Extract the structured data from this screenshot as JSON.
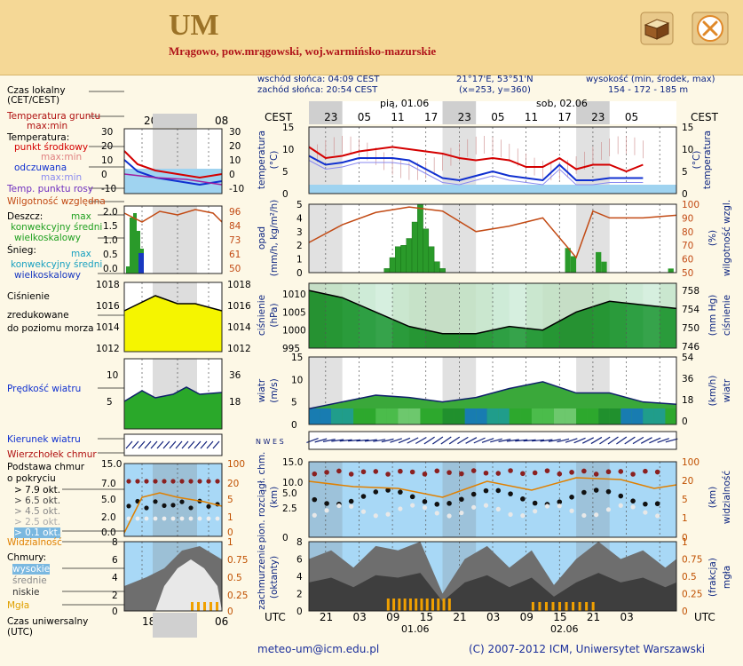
{
  "header": {
    "title": "UM",
    "subtitle": "Mrągowo, pow.mrągowski, woj.warmińsko-mazurskie",
    "colors": {
      "bar": "#f5d896",
      "title": "#9b7227",
      "subtitle": "#b0141a"
    }
  },
  "info": {
    "sunrise": "wschód słońca: 04:09 CEST",
    "sunset": "zachód słońca: 20:54 CEST",
    "coords": "21°17'E, 53°51'N",
    "grid": "(x=253, y=360)",
    "elevation_label": "wysokość (min, środek, max)",
    "elevation_value": "154 - 172 - 185 m"
  },
  "time": {
    "local_label": "CEST",
    "utc_label": "UTC",
    "days": [
      "pią, 01.06",
      "sob, 02.06"
    ],
    "local_ticks": [
      "23",
      "05",
      "11",
      "17",
      "23",
      "05",
      "11",
      "17",
      "23",
      "05"
    ],
    "utc_ticks": [
      "21",
      "03",
      "09",
      "15",
      "21",
      "03",
      "09",
      "15",
      "21",
      "03"
    ],
    "utc_dates": [
      "01.06",
      "02.06"
    ]
  },
  "legend": {
    "local_time": "Czas lokalny",
    "local_time_2": "(CET/CEST)",
    "soil_temp": "Temperatura gruntu",
    "soil_temp_2": "max:min",
    "temperature": "Temperatura:",
    "mid_point": "punkt środkowy",
    "max_min_1": "max:min",
    "feels_like": "odczuwana",
    "max_min_2": "max:min",
    "dew_point": "Temp. punktu rosy",
    "humidity": "Wilgotność względna",
    "rain": "Deszcz:",
    "rain_max": "max",
    "convective_avg": "konwekcyjny średni",
    "large_scale": "wielkoskalowy",
    "snow": "Śnieg:",
    "snow_max": "max",
    "snow_convective": "konwekcyjny średni",
    "snow_large": "wielkoskalowy",
    "pressure": "Ciśnienie",
    "pressure_2": "zredukowane",
    "pressure_3": "do poziomu morza",
    "wind_speed": "Prędkość wiatru",
    "wind_dir": "Kierunek wiatru",
    "cloud_top": "Wierzchołek chmur",
    "cloud_base": "Podstawa chmur",
    "cloud_base_2": "o pokryciu",
    "okt1": "> 7.9 okt.",
    "okt2": "> 6.5 okt.",
    "okt3": "> 4.5 okt.",
    "okt4": "> 2.5 okt.",
    "okt5": "> 0.1 okt.",
    "visibility": "Widzialność",
    "clouds": "Chmury:",
    "high": "wysokie",
    "mid": "średnie",
    "low": "niskie",
    "fog": "Mgła",
    "utc_time": "Czas uniwersalny",
    "utc_time_2": "(UTC)"
  },
  "mini_axis": {
    "top_ticks": [
      "20",
      "02",
      "08"
    ],
    "bottom_ticks": [
      "18",
      "00",
      "06"
    ]
  },
  "panels": {
    "temp": {
      "ylabel": "temperatura",
      "unit": "(°C)",
      "ticks": [
        "15",
        "10",
        "5",
        "0"
      ]
    },
    "precip": {
      "ylabel": "opad",
      "unit": "(mm/h, kg/m²/h)",
      "ticks": [
        "5",
        "4",
        "3",
        "2",
        "1",
        "0"
      ],
      "ylabel_r": "wilgotność wzgl.",
      "unit_r": "(%)",
      "ticks_r": [
        "100",
        "90",
        "80",
        "70",
        "60",
        "50"
      ]
    },
    "pressure": {
      "ylabel": "ciśnienie",
      "unit": "(hPa)",
      "ticks": [
        "1010",
        "1005",
        "1000",
        "995"
      ],
      "ylabel_r": "ciśnienie",
      "unit_r": "(mm Hg)",
      "ticks_r": [
        "758",
        "754",
        "750",
        "746"
      ]
    },
    "wind": {
      "ylabel": "wiatr",
      "unit": "(m/s)",
      "ticks": [
        "15",
        "10",
        "5",
        "0"
      ],
      "ylabel_r": "wiatr",
      "unit_r": "(km/h)",
      "ticks_r": [
        "54",
        "36",
        "18",
        "0"
      ]
    },
    "winddir": {
      "compass": "N W E S"
    },
    "cloudbase": {
      "ylabel": "pion. rozciągł. chm.",
      "unit": "(km)",
      "ticks": [
        "15.0",
        "10.0",
        "5.0",
        "2.5",
        "0"
      ],
      "ylabel_r": "widzialność",
      "unit_r": "(km)",
      "ticks_r": [
        "100",
        "20",
        "5",
        "1",
        "0"
      ]
    },
    "cloudcover": {
      "ylabel": "zachmurzenie",
      "unit": "(oktanty)",
      "ticks": [
        "8",
        "6",
        "4",
        "2",
        "0"
      ],
      "ylabel_r": "mgła",
      "unit_r": "(frakcja)",
      "ticks_r": [
        "1",
        "0.75",
        "0.5",
        "0.25",
        "0"
      ]
    }
  },
  "mini_panels": {
    "temp_ticks": [
      "30",
      "20",
      "10",
      "0",
      "-10"
    ],
    "rain_ticks": [
      "2.0",
      "1.5",
      "1.0",
      "0.5",
      "0.0"
    ],
    "hum_ticks": [
      "96",
      "84",
      "73",
      "61",
      "50"
    ],
    "press_ticks": [
      "1018",
      "1016",
      "1014",
      "1012"
    ],
    "wind_ticks": [
      "10",
      "5"
    ],
    "wind_ticks_r": [
      "36",
      "18"
    ],
    "cb_ticks": [
      "15.0",
      "7.0",
      "5.0",
      "2.0",
      "0.0"
    ],
    "cb_ticks_r": [
      "100",
      "20",
      "5",
      "1",
      "0"
    ],
    "cc_ticks": [
      "8",
      "6",
      "4",
      "2",
      "0"
    ],
    "cc_ticks_r": [
      "1",
      "0.75",
      "0.5",
      "0.25",
      "0"
    ]
  },
  "footer": {
    "email": "meteo-um@icm.edu.pl",
    "copyright": "(C) 2007-2012 ICM, Uniwersytet Warszawski"
  },
  "chart_data": [
    {
      "type": "line",
      "title": "temperatura",
      "x_hours_from_start": [
        0,
        3,
        6,
        9,
        12,
        15,
        18,
        21,
        24,
        27,
        30,
        33,
        36,
        39,
        42,
        45,
        48,
        51,
        54,
        57,
        60
      ],
      "series": [
        {
          "name": "punkt środkowy",
          "values": [
            10.5,
            8,
            8.5,
            9.5,
            10,
            10.5,
            10,
            9.5,
            9,
            8,
            7.5,
            8,
            7.5,
            6,
            6,
            8,
            5.5,
            6.5,
            6.5,
            5,
            6.5
          ]
        },
        {
          "name": "odczuwana",
          "values": [
            8.5,
            6.5,
            7,
            8,
            8,
            8,
            7.5,
            5.5,
            3.5,
            3,
            4,
            5,
            4,
            3.5,
            3,
            6.5,
            3,
            3,
            3.5,
            3.5,
            3.5
          ]
        }
      ],
      "ylim": [
        0,
        15
      ]
    },
    {
      "type": "bar",
      "title": "opad",
      "x_hours_from_start": [
        14,
        15,
        16,
        17,
        18,
        19,
        20,
        21,
        22,
        23,
        24
      ],
      "values": [
        0.3,
        1.1,
        1.9,
        2.0,
        2.5,
        3.7,
        5.0,
        3.2,
        1.9,
        0.8,
        0.3
      ],
      "ylim": [
        0,
        5
      ]
    },
    {
      "type": "line",
      "title": "wilgotność wzgl.",
      "x_hours_from_start": [
        0,
        6,
        12,
        18,
        24,
        30,
        36,
        42,
        48,
        51,
        54,
        60,
        66
      ],
      "values": [
        72,
        85,
        94,
        98,
        95,
        80,
        84,
        90,
        61,
        95,
        90,
        90,
        92
      ],
      "ylim": [
        50,
        100
      ]
    },
    {
      "type": "area",
      "title": "ciśnienie",
      "x_hours_from_start": [
        0,
        6,
        12,
        18,
        24,
        30,
        36,
        42,
        48,
        54,
        60,
        66
      ],
      "values": [
        1011,
        1009,
        1005,
        1001,
        999,
        999,
        1001,
        1000,
        1005,
        1008,
        1007,
        1006
      ],
      "ylim": [
        995,
        1013
      ]
    },
    {
      "type": "area",
      "title": "wiatr",
      "x_hours_from_start": [
        0,
        6,
        12,
        18,
        24,
        30,
        36,
        42,
        48,
        54,
        60,
        66
      ],
      "values": [
        3.5,
        5,
        6.5,
        6,
        5,
        6,
        8,
        9.5,
        7,
        7,
        5,
        4.5
      ],
      "ylim": [
        0,
        15
      ]
    }
  ]
}
